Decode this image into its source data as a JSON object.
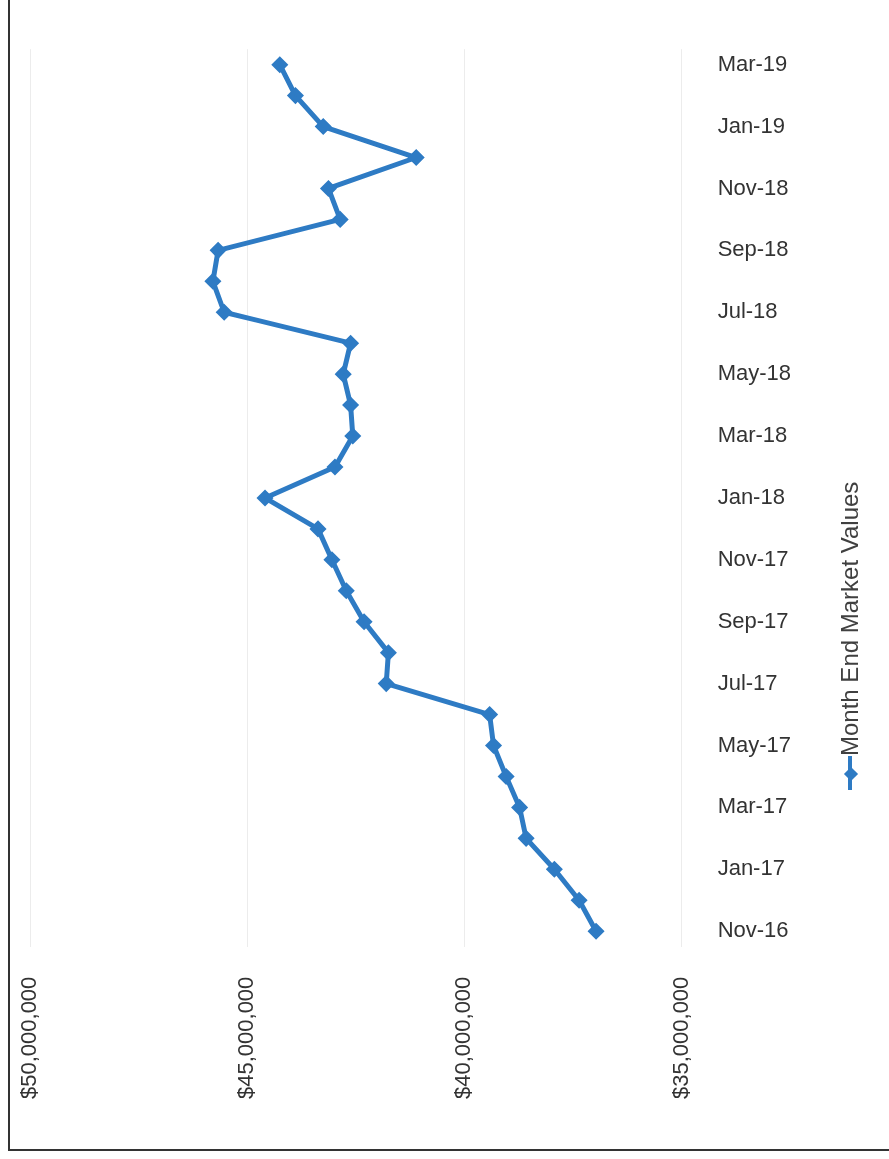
{
  "chart_data": {
    "type": "line",
    "orientation": "horizontal",
    "categories": [
      "Mar-19",
      null,
      "Jan-19",
      null,
      "Nov-18",
      null,
      "Sep-18",
      null,
      "Jul-18",
      null,
      "May-18",
      null,
      "Mar-18",
      null,
      "Jan-18",
      null,
      "Nov-17",
      null,
      "Sep-17",
      null,
      "Jul-17",
      null,
      "May-17",
      null,
      "Mar-17",
      null,
      "Jan-17",
      null,
      "Nov-16"
    ],
    "series": [
      {
        "name": "Month End Market Values",
        "color": "#2e7bc4",
        "values": [
          44250000,
          43890000,
          43250000,
          41110000,
          43130000,
          42860000,
          45670000,
          45790000,
          45530000,
          42620000,
          42790000,
          42620000,
          42570000,
          42980000,
          44590000,
          43370000,
          43050000,
          42720000,
          42310000,
          41750000,
          41800000,
          39420000,
          39330000,
          39040000,
          38730000,
          38580000,
          37930000,
          37360000,
          36970000
        ]
      }
    ],
    "xlim": [
      50000000,
      35000000
    ],
    "xticks": [
      {
        "value": 50000000,
        "label": "$50,000,000"
      },
      {
        "value": 45000000,
        "label": "$45,000,000"
      },
      {
        "value": 40000000,
        "label": "$40,000,000"
      },
      {
        "value": 35000000,
        "label": "$35,000,000"
      }
    ],
    "grid": "x",
    "legend": "right",
    "marker": "diamond",
    "line_style": "solid"
  }
}
